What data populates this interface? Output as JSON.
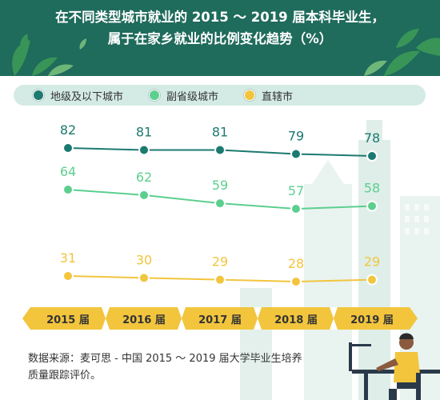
{
  "header": {
    "title_line1": "在不同类型城市就业的 2015 ～ 2019 届本科毕业生，",
    "title_line2": "属于在家乡就业的比例变化趋势（%）"
  },
  "legend": {
    "items": [
      {
        "label": "地级及以下城市",
        "color": "#1c7a70"
      },
      {
        "label": "副省级城市",
        "color": "#5ccf8f"
      },
      {
        "label": "直辖市",
        "color": "#f2c53d"
      }
    ]
  },
  "chart_data": {
    "type": "line",
    "categories": [
      "2015 届",
      "2016 届",
      "2017 届",
      "2018 届",
      "2019 届"
    ],
    "series": [
      {
        "name": "地级及以下城市",
        "values": [
          82,
          81,
          81,
          79,
          78
        ],
        "color": "#1c7a70"
      },
      {
        "name": "副省级城市",
        "values": [
          64,
          62,
          59,
          57,
          58
        ],
        "color": "#5ccf8f"
      },
      {
        "name": "直辖市",
        "values": [
          31,
          30,
          29,
          28,
          29
        ],
        "color": "#f2c53d"
      }
    ],
    "value_suffix": "",
    "banner_color": "#f2c53d"
  },
  "footer": {
    "source_line1": "数据来源：麦可思 - 中国 2015 ～ 2019 届大学毕业生培养",
    "source_line2": "质量跟踪评价。"
  }
}
